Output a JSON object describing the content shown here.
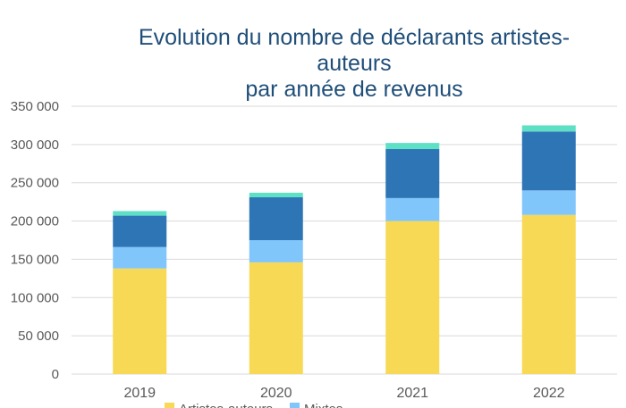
{
  "chart_data": {
    "type": "bar",
    "stacked": true,
    "title_lines": [
      "Evolution du nombre de déclarants artistes-",
      "auteurs",
      "par année de revenus"
    ],
    "categories": [
      "2019",
      "2020",
      "2021",
      "2022"
    ],
    "ylim": [
      0,
      350000
    ],
    "yticks": [
      0,
      50000,
      100000,
      150000,
      200000,
      250000,
      300000,
      350000
    ],
    "ytick_labels": [
      "0",
      "50 000",
      "100 000",
      "150 000",
      "200 000",
      "250 000",
      "300 000",
      "350 000"
    ],
    "grid": true,
    "series": [
      {
        "name": "Artistes-auteurs",
        "color": "#f7d955",
        "values": [
          138000,
          146000,
          200000,
          208000
        ]
      },
      {
        "color": "#80c6fb",
        "values": [
          28000,
          29000,
          30000,
          32000
        ]
      },
      {
        "color": "#2e75b6",
        "values": [
          41000,
          56000,
          64000,
          77000
        ]
      },
      {
        "color": "#5ee0c4",
        "values": [
          6000,
          6000,
          8000,
          8000
        ]
      }
    ],
    "legend": {
      "position": "bottom",
      "visible_labels": [
        "Artistes-auteurs",
        "Mixtes"
      ]
    }
  }
}
